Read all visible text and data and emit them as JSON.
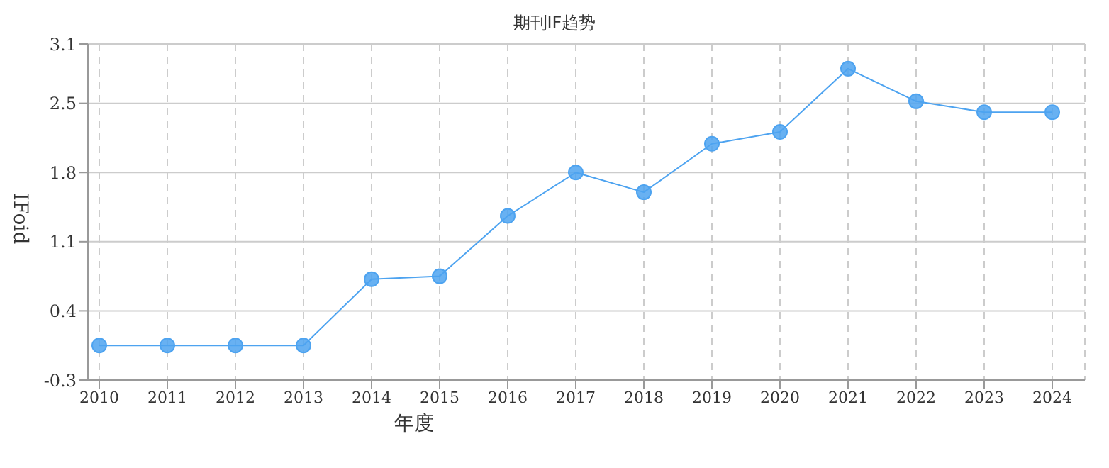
{
  "chart_data": {
    "type": "line",
    "title": "期刊IF趋势",
    "xlabel": "年度",
    "ylabel": "IFoid",
    "categories": [
      "2010",
      "2011",
      "2012",
      "2013",
      "2014",
      "2015",
      "2016",
      "2017",
      "2018",
      "2019",
      "2020",
      "2021",
      "2022",
      "2023",
      "2024"
    ],
    "series": [
      {
        "color": "#4da3f0",
        "values": [
          0.05,
          0.05,
          0.05,
          0.05,
          0.72,
          0.75,
          1.36,
          1.8,
          1.6,
          2.09,
          2.21,
          2.85,
          2.52,
          2.41,
          2.41
        ]
      }
    ],
    "ylim": [
      -0.3,
      3.1
    ],
    "yticks": [
      -0.3,
      0.4,
      1.1,
      1.8,
      2.5,
      3.1
    ],
    "grid": true,
    "marker": "circle",
    "line_style": "solid"
  }
}
